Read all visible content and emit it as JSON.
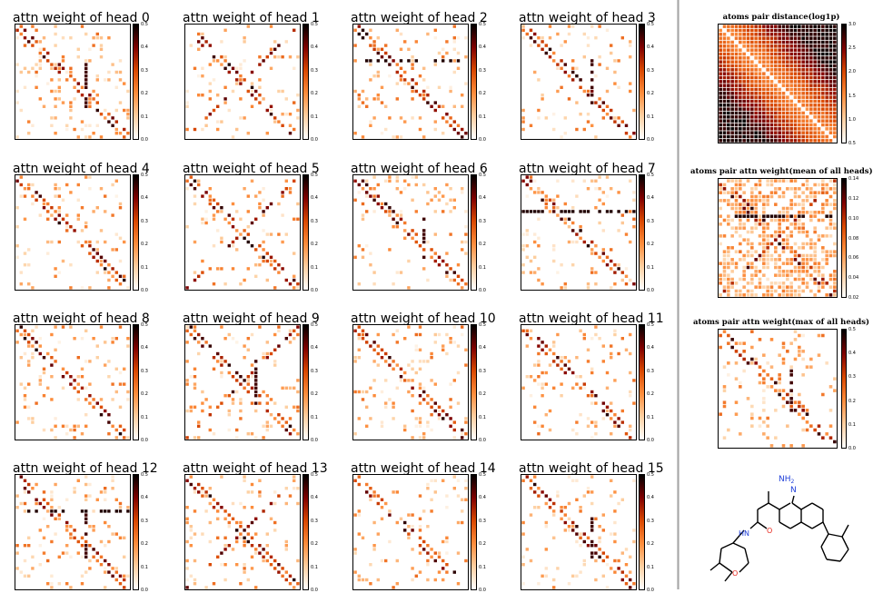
{
  "figure": {
    "head_panels": [
      {
        "title": "attn weight of head 0"
      },
      {
        "title": "attn weight of head 1"
      },
      {
        "title": "attn weight of head 2"
      },
      {
        "title": "attn weight of head 3"
      },
      {
        "title": "attn weight of head 4"
      },
      {
        "title": "attn weight of head 5"
      },
      {
        "title": "attn weight of head 6"
      },
      {
        "title": "attn weight of head 7"
      },
      {
        "title": "attn weight of head 8"
      },
      {
        "title": "attn weight of head 9"
      },
      {
        "title": "attn weight of head 10"
      },
      {
        "title": "attn weight of head 11"
      },
      {
        "title": "attn weight of head 12"
      },
      {
        "title": "attn weight of head 13"
      },
      {
        "title": "attn weight of head 14"
      },
      {
        "title": "attn weight of head 15"
      }
    ],
    "right_panels": [
      {
        "title": "atoms pair distance(log1p)"
      },
      {
        "title": "atoms pair attn weight(mean of all heads)"
      },
      {
        "title": "atoms pair attn weight(max of all heads)"
      }
    ],
    "head_colorbar_ticks": [
      "0.0",
      "0.1",
      "0.2",
      "0.3",
      "0.4",
      "0.5"
    ],
    "distance_colorbar_ticks": [
      "0.5",
      "1.0",
      "1.5",
      "2.0",
      "2.5",
      "3.0"
    ],
    "mean_colorbar_ticks": [
      "0.02",
      "0.04",
      "0.06",
      "0.08",
      "0.10",
      "0.12",
      "0.14"
    ],
    "max_colorbar_ticks": [
      "0.0",
      "0.1",
      "0.2",
      "0.3",
      "0.4",
      "0.5"
    ],
    "molecule_labels": {
      "amine": "NH",
      "amine_sub": "2",
      "amide_n": "N",
      "amide_h": "H",
      "carbonyl_o": "O",
      "ring_n": "N",
      "ether_o": "O"
    }
  },
  "colors": {
    "colormap": [
      "#ffffff",
      "#fdd0a2",
      "#fd8d3c",
      "#d94801",
      "#7f0000",
      "#000000"
    ],
    "molecule_bonds": "#000000",
    "molecule_nitrogen": "#1f3fd9",
    "molecule_oxygen": "#e8281e"
  },
  "chart_data": [
    {
      "type": "heatmap",
      "title": "attn weight of head 0",
      "n": 30,
      "vmin": 0.0,
      "vmax": 0.5,
      "pattern": "diagonal band with bright block near top-right"
    },
    {
      "type": "heatmap",
      "title": "attn weight of head 1",
      "n": 30,
      "vmin": 0.0,
      "vmax": 0.5,
      "pattern": "crossed diagonals"
    },
    {
      "type": "heatmap",
      "title": "attn weight of head 2",
      "n": 30,
      "vmin": 0.0,
      "vmax": 0.5,
      "pattern": "sparse dark cells"
    },
    {
      "type": "heatmap",
      "title": "attn weight of head 3",
      "n": 30,
      "vmin": 0.0,
      "vmax": 0.5,
      "pattern": "diagonal band"
    },
    {
      "type": "heatmap",
      "title": "attn weight of head 4",
      "n": 30,
      "vmin": 0.0,
      "vmax": 0.5,
      "pattern": "crossed diagonals"
    },
    {
      "type": "heatmap",
      "title": "attn weight of head 5",
      "n": 30,
      "vmin": 0.0,
      "vmax": 0.5,
      "pattern": "dark main diagonal"
    },
    {
      "type": "heatmap",
      "title": "attn weight of head 6",
      "n": 30,
      "vmin": 0.0,
      "vmax": 0.5,
      "pattern": "main diagonal"
    },
    {
      "type": "heatmap",
      "title": "attn weight of head 7",
      "n": 30,
      "vmin": 0.0,
      "vmax": 0.5,
      "pattern": "diffuse band"
    },
    {
      "type": "heatmap",
      "title": "attn weight of head 8",
      "n": 30,
      "vmin": 0.0,
      "vmax": 0.5,
      "pattern": "diffuse with columns"
    },
    {
      "type": "heatmap",
      "title": "attn weight of head 9",
      "n": 30,
      "vmin": 0.0,
      "vmax": 0.5,
      "pattern": "diagonal band"
    },
    {
      "type": "heatmap",
      "title": "attn weight of head 10",
      "n": 30,
      "vmin": 0.0,
      "vmax": 0.5,
      "pattern": "sparse dark column"
    },
    {
      "type": "heatmap",
      "title": "attn weight of head 11",
      "n": 30,
      "vmin": 0.0,
      "vmax": 0.5,
      "pattern": "dense blocks"
    },
    {
      "type": "heatmap",
      "title": "attn weight of head 12",
      "n": 30,
      "vmin": 0.0,
      "vmax": 0.5,
      "pattern": "dark columns and diagonal"
    },
    {
      "type": "heatmap",
      "title": "attn weight of head 13",
      "n": 30,
      "vmin": 0.0,
      "vmax": 0.5,
      "pattern": "diffuse edges"
    },
    {
      "type": "heatmap",
      "title": "attn weight of head 14",
      "n": 30,
      "vmin": 0.0,
      "vmax": 0.5,
      "pattern": "dark main diagonal"
    },
    {
      "type": "heatmap",
      "title": "attn weight of head 15",
      "n": 30,
      "vmin": 0.0,
      "vmax": 0.5,
      "pattern": "dark horizontal rows"
    },
    {
      "type": "heatmap",
      "title": "atoms pair distance(log1p)",
      "n": 30,
      "vmin": 0.3,
      "vmax": 3.2,
      "pattern": "distance matrix"
    },
    {
      "type": "heatmap",
      "title": "atoms pair attn weight(mean of all heads)",
      "n": 30,
      "vmin": 0.0,
      "vmax": 0.15,
      "pattern": "mean attention"
    },
    {
      "type": "heatmap",
      "title": "atoms pair attn weight(max of all heads)",
      "n": 30,
      "vmin": 0.0,
      "vmax": 0.5,
      "pattern": "max attention"
    }
  ]
}
